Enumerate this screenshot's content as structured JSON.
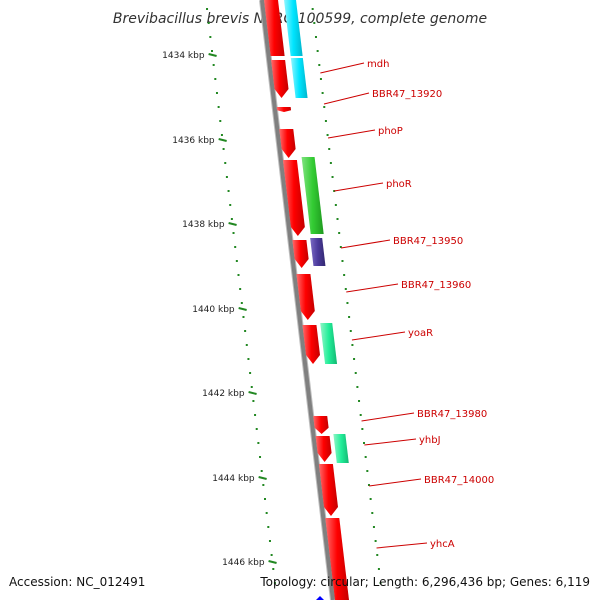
{
  "title": "Brevibacillus brevis NBRC 100599, complete genome",
  "accession": "Accession: NC_012491",
  "topology": "Topology: circular; Length: 6,296,436 bp; Genes: 6,119",
  "ticks": [
    "1434 kbp",
    "1436 kbp",
    "1438 kbp",
    "1440 kbp",
    "1442 kbp",
    "1444 kbp",
    "1446 kbp"
  ],
  "genes": [
    "mdh",
    "BBR47_13920",
    "phoP",
    "phoR",
    "BBR47_13950",
    "BBR47_13960",
    "yoaR",
    "BBR47_13980",
    "yhbJ",
    "BBR47_14000",
    "yhcA"
  ],
  "colors": {
    "backbone": "#808080",
    "cds": "#ff0000",
    "mdh_feature": "#00e5ff",
    "phoR_feature": "#33cc33",
    "BBR47_13950_feature": "#4b3a9c",
    "yoaR_feature": "#22ee99",
    "yhbJ_feature": "#22ee99",
    "tick": "#228822",
    "label": "#cc0000",
    "marker": "#0000ff"
  }
}
